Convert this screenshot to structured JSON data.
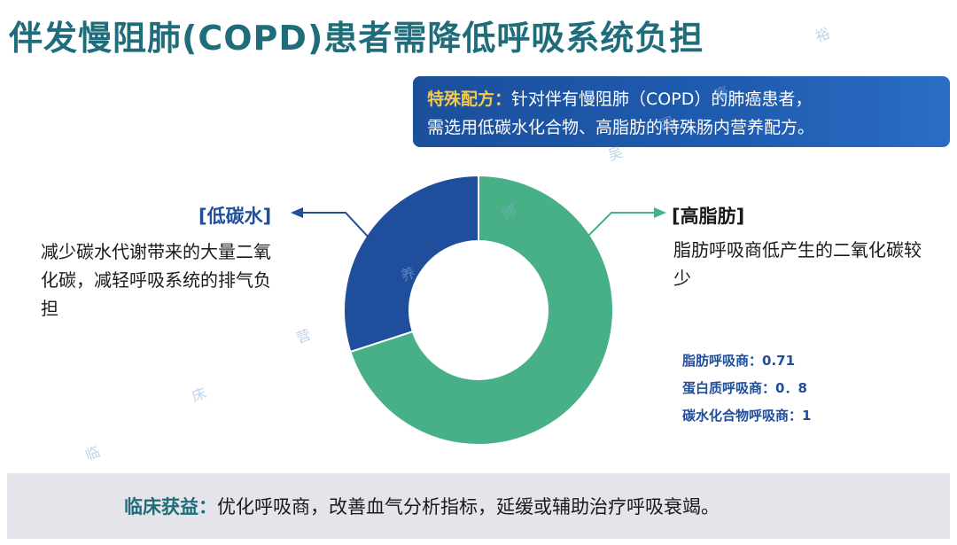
{
  "title": "伴发慢阻肺(COPD)患者需降低呼吸系统负担",
  "callout": {
    "head": "特殊配方：",
    "line1": "针对伴有慢阻肺（COPD）的肺癌患者，",
    "line2": "需选用低碳水化合物、高脂肪的特殊肠内营养配方。"
  },
  "left": {
    "label": "[低碳水]",
    "desc": "减少碳水代谢带来的大量二氧化碳，减轻呼吸系统的排气负担"
  },
  "right": {
    "label": "[高脂肪]",
    "desc": "脂肪呼吸商低产生的二氧化碳较少"
  },
  "rq": {
    "fat": "脂肪呼吸商：0.71",
    "protein": "蛋白质呼吸商：0．8",
    "carb": "碳水化合物呼吸商：1"
  },
  "donut": {
    "segments": [
      {
        "key": "high_fat",
        "fraction": 0.7,
        "color": "#47b086"
      },
      {
        "key": "low_carb",
        "fraction": 0.3,
        "color": "#1f4e9c"
      }
    ],
    "arrow_color": "#1f4e9c",
    "arrow_color_right": "#47b086"
  },
  "bottom": {
    "head": "临床获益：",
    "text": "优化呼吸商，改善血气分析指标，延缓或辅助治疗呼吸衰竭。"
  },
  "watermark": [
    "临",
    "床",
    "营",
    "养",
    "师",
    "吴",
    "国",
    "豪",
    "裕"
  ]
}
